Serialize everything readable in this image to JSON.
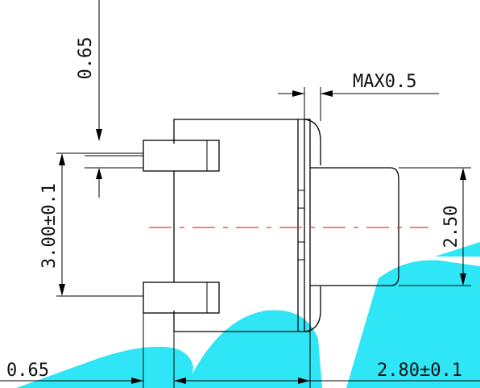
{
  "drawing": {
    "dimensions": {
      "top_pin_offset": "0.65",
      "max_cap": "MAX0.5",
      "pin_pitch": "3.00±0.1",
      "height_right": "2.50",
      "left_offset": "0.65",
      "width_bottom": "2.80±0.1"
    }
  },
  "colors": {
    "line": "#000000",
    "centerline": "#e53935",
    "watermark": "#2ee6f5",
    "background": "#ffffff"
  }
}
